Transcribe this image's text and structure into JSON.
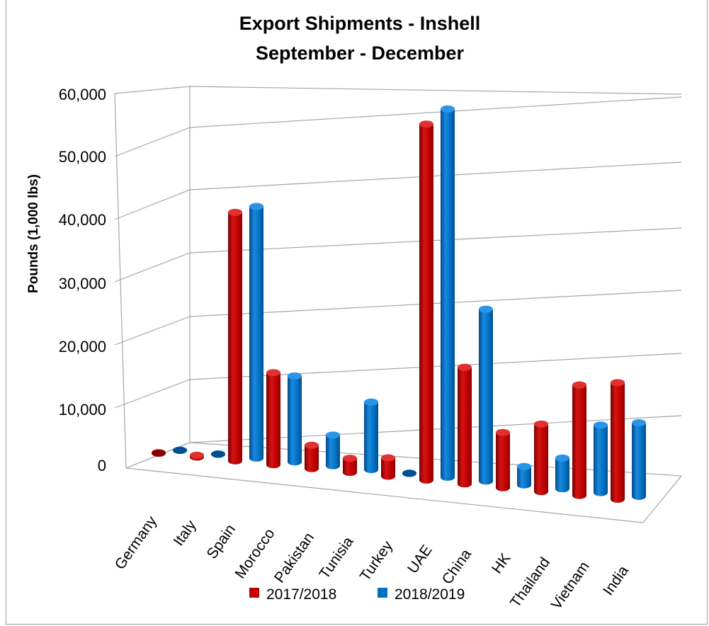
{
  "chart_data": {
    "type": "bar",
    "title_line1": "Export Shipments - Inshell",
    "title_line2": "September - December",
    "xlabel": "",
    "ylabel": "Pounds (1,000 lbs)",
    "ylim": [
      0,
      60000
    ],
    "yticks": [
      "0",
      "10,000",
      "20,000",
      "30,000",
      "40,000",
      "50,000",
      "60,000"
    ],
    "grid": true,
    "legend_position": "bottom",
    "categories": [
      "Germany",
      "Italy",
      "Spain",
      "Morocco",
      "Pakistan",
      "Tunisia",
      "Turkey",
      "UAE",
      "China",
      "HK",
      "Thailand",
      "Vietnam",
      "India"
    ],
    "series": [
      {
        "name": "2017/2018",
        "color": "#c00000",
        "values": [
          100,
          300,
          40500,
          15000,
          3800,
          2300,
          3000,
          58000,
          19000,
          9000,
          11000,
          18000,
          19000
        ]
      },
      {
        "name": "2018/2019",
        "color": "#0070c0",
        "values": [
          50,
          50,
          41000,
          14000,
          5000,
          11000,
          50,
          60000,
          28000,
          3000,
          5000,
          11000,
          12000
        ]
      }
    ]
  }
}
